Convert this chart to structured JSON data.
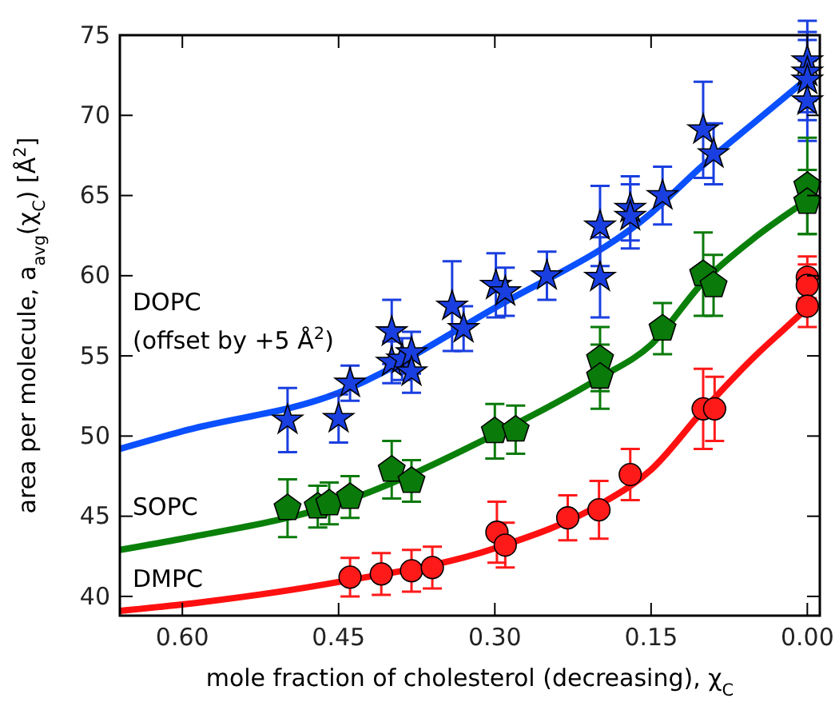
{
  "chart_data": {
    "type": "scatter",
    "xlabel": "mole fraction of cholesterol (decreasing), χ$_{C}$",
    "ylabel": "area per molecule, a$_{avg}$(χ$_{C}$) [Å$^{2}$]",
    "xlim": [
      0.66,
      -0.012
    ],
    "ylim": [
      38.8,
      75
    ],
    "xticks": [
      {
        "value": 0.6,
        "label": "0.60"
      },
      {
        "value": 0.45,
        "label": "0.45"
      },
      {
        "value": 0.3,
        "label": "0.30"
      },
      {
        "value": 0.15,
        "label": "0.15"
      },
      {
        "value": 0,
        "label": "0.00"
      }
    ],
    "yticks": [
      40,
      45,
      50,
      55,
      60,
      65,
      70,
      75
    ],
    "grid": false,
    "legend": false,
    "annotations": [
      "DOPC",
      "(offset by +5 Å$^{2}$)"
    ],
    "series": [
      {
        "type": "line",
        "color": "#0a50ff",
        "marker": "none",
        "x": [
          0.66,
          0.6,
          0.45,
          0.3,
          0.15,
          0.1,
          0.05,
          0.0
        ],
        "values": [
          49.2,
          50.3,
          52.7,
          58.0,
          63.9,
          66.9,
          69.6,
          72.3
        ]
      },
      {
        "type": "line",
        "name": "SOPC",
        "color": "#0a800a",
        "marker": "none",
        "x": [
          0.66,
          0.6,
          0.45,
          0.3,
          0.2,
          0.15,
          0.1,
          0.05,
          0.0
        ],
        "values": [
          42.9,
          43.6,
          45.8,
          50.1,
          53.6,
          55.7,
          59.6,
          62.4,
          64.7
        ]
      },
      {
        "type": "line",
        "name": "DMPC",
        "color": "#ff1010",
        "marker": "none",
        "x": [
          0.66,
          0.6,
          0.45,
          0.3,
          0.2,
          0.15,
          0.1,
          0.05,
          0.02,
          0.0
        ],
        "values": [
          39.1,
          39.5,
          40.9,
          43.0,
          45.7,
          47.9,
          51.6,
          55.0,
          56.8,
          58.0
        ]
      },
      {
        "color": "#1a3fe0",
        "marker": "star",
        "x": [
          0.499,
          0.45,
          0.439,
          0.399,
          0.399,
          0.389,
          0.38,
          0.38,
          0.33,
          0.341,
          0.299,
          0.29,
          0.25,
          0.199,
          0.199,
          0.17,
          0.17,
          0.139,
          0.1,
          0.09,
          0.0,
          0.0,
          0.0,
          0.0
        ],
        "values": [
          51.0,
          51.1,
          53.3,
          54.6,
          56.5,
          54.8,
          55.2,
          54.0,
          56.7,
          58.1,
          59.4,
          59.0,
          60.0,
          63.1,
          59.9,
          64.2,
          63.7,
          65.0,
          69.1,
          67.6,
          73.4,
          72.7,
          72.2,
          70.9
        ],
        "errors": [
          2.0,
          1.5,
          1.1,
          1.3,
          2.0,
          1.3,
          1.3,
          1.3,
          1.4,
          2.8,
          2.0,
          1.5,
          1.5,
          2.5,
          2.5,
          2.0,
          2.0,
          1.8,
          3.0,
          1.9,
          2.5,
          2.5,
          2.5,
          2.5
        ]
      },
      {
        "color": "#0a7a0a",
        "x": [
          0.499,
          0.47,
          0.459,
          0.439,
          0.399,
          0.38,
          0.3,
          0.28,
          0.199,
          0.199,
          0.139,
          0.1,
          0.09,
          0.0,
          0.0
        ],
        "values": [
          45.5,
          45.6,
          45.8,
          46.2,
          47.9,
          47.2,
          50.3,
          50.4,
          54.8,
          53.7,
          56.7,
          60.1,
          59.4,
          65.6,
          64.6
        ],
        "errors": [
          1.8,
          1.3,
          1.3,
          1.3,
          1.8,
          1.3,
          1.7,
          1.5,
          2.0,
          2.0,
          1.6,
          2.6,
          1.9,
          3.0,
          2.0
        ]
      },
      {
        "color": "#ff1a1a",
        "marker": "circle",
        "x": [
          0.439,
          0.409,
          0.38,
          0.36,
          0.298,
          0.29,
          0.23,
          0.2,
          0.17,
          0.1,
          0.089,
          0.0,
          0.0,
          0.0
        ],
        "values": [
          41.2,
          41.4,
          41.6,
          41.8,
          44.0,
          43.2,
          44.9,
          45.4,
          47.6,
          51.7,
          51.7,
          59.9,
          59.4,
          58.1
        ],
        "errors": [
          1.2,
          1.3,
          1.3,
          1.3,
          1.9,
          1.4,
          1.4,
          1.8,
          1.6,
          2.5,
          2.0,
          1.3,
          1.3,
          1.3
        ]
      }
    ]
  }
}
